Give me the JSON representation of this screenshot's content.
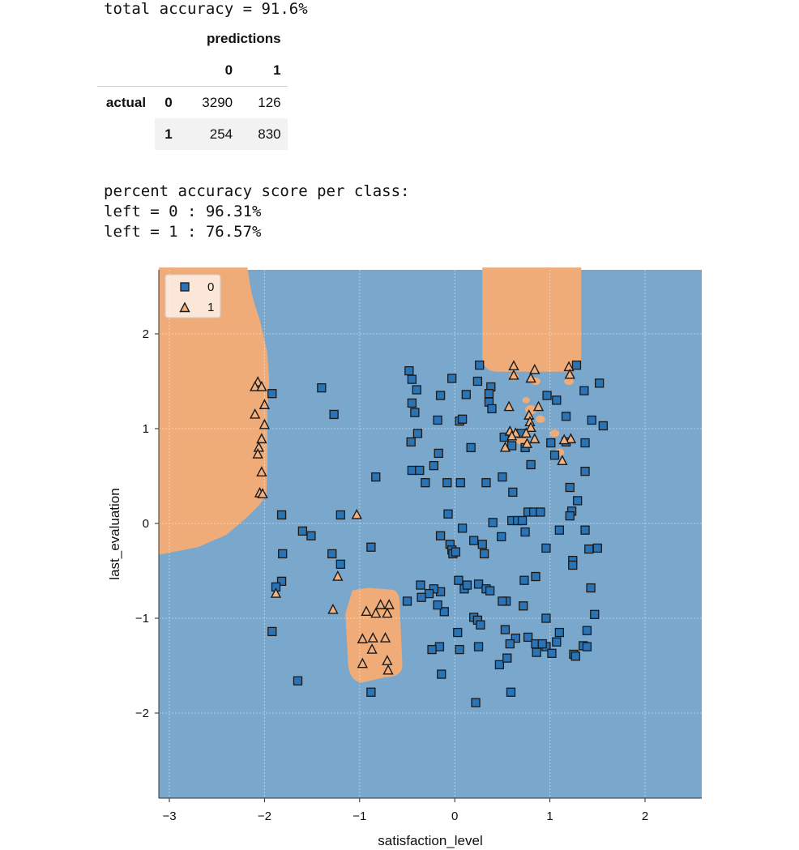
{
  "output": {
    "accuracy_line": "total accuracy = 91.6%",
    "confusion_matrix": {
      "col_group": "predictions",
      "col_labels": [
        "0",
        "1"
      ],
      "row_group": "actual",
      "row_labels": [
        "0",
        "1"
      ],
      "values": [
        [
          3290,
          126
        ],
        [
          254,
          830
        ]
      ]
    },
    "per_class_header": "percent accuracy score per class:",
    "per_class_lines": [
      "left = 0 : 96.31%",
      "left = 1 : 76.57%"
    ]
  },
  "chart_data": {
    "type": "scatter",
    "xlabel": "satisfaction_level",
    "ylabel": "last_evaluation",
    "xlim": [
      -3.15,
      2.55
    ],
    "ylim": [
      -2.9,
      2.7
    ],
    "xticks": [
      -3,
      -2,
      -1,
      0,
      1,
      2
    ],
    "yticks": [
      -2,
      -1,
      0,
      1,
      2
    ],
    "grid": true,
    "legend_position": "top-left",
    "colors": {
      "class0_region": "#7aa7cc",
      "class1_region": "#f0ac78",
      "class0_marker": "#2a73b4",
      "class1_marker": "#f3b17f"
    },
    "series": [
      {
        "name": "0",
        "marker": "square",
        "points": [
          [
            -1.92,
            1.37
          ],
          [
            -1.4,
            1.43
          ],
          [
            -1.27,
            1.15
          ],
          [
            -1.82,
            0.09
          ],
          [
            -1.2,
            0.09
          ],
          [
            -0.83,
            0.49
          ],
          [
            -1.6,
            -0.08
          ],
          [
            -1.51,
            -0.13
          ],
          [
            -1.81,
            -0.32
          ],
          [
            -1.29,
            -0.32
          ],
          [
            -1.2,
            -0.43
          ],
          [
            -1.82,
            -0.61
          ],
          [
            -1.88,
            -0.67
          ],
          [
            -1.92,
            -1.14
          ],
          [
            -1.65,
            -1.66
          ],
          [
            -0.88,
            -1.78
          ],
          [
            -0.88,
            -0.25
          ],
          [
            -0.48,
            1.61
          ],
          [
            -0.45,
            1.52
          ],
          [
            -0.4,
            1.41
          ],
          [
            -0.45,
            1.27
          ],
          [
            -0.42,
            1.17
          ],
          [
            -0.39,
            0.95
          ],
          [
            -0.46,
            0.86
          ],
          [
            -0.45,
            0.56
          ],
          [
            -0.37,
            0.56
          ],
          [
            -0.31,
            0.43
          ],
          [
            -0.22,
            0.61
          ],
          [
            -0.17,
            0.74
          ],
          [
            -0.18,
            1.09
          ],
          [
            -0.15,
            1.35
          ],
          [
            -0.03,
            1.53
          ],
          [
            0.05,
            1.08
          ],
          [
            0.12,
            1.36
          ],
          [
            0.08,
            1.1
          ],
          [
            0.17,
            0.8
          ],
          [
            0.24,
            1.5
          ],
          [
            0.26,
            1.67
          ],
          [
            0.36,
            1.28
          ],
          [
            0.38,
            1.44
          ],
          [
            0.36,
            1.37
          ],
          [
            0.39,
            1.21
          ],
          [
            -0.08,
            0.43
          ],
          [
            0.06,
            0.43
          ],
          [
            0.33,
            0.43
          ],
          [
            0.5,
            0.49
          ],
          [
            0.52,
            0.91
          ],
          [
            0.6,
            0.82
          ],
          [
            0.7,
            0.95
          ],
          [
            0.74,
            0.8
          ],
          [
            0.8,
            0.62
          ],
          [
            0.97,
            1.35
          ],
          [
            1.07,
            1.3
          ],
          [
            1.01,
            0.85
          ],
          [
            1.05,
            0.72
          ],
          [
            1.28,
            1.67
          ],
          [
            1.36,
            1.4
          ],
          [
            1.44,
            1.09
          ],
          [
            1.52,
            1.48
          ],
          [
            1.56,
            1.03
          ],
          [
            1.17,
            1.13
          ],
          [
            1.17,
            0.86
          ],
          [
            1.37,
            0.85
          ],
          [
            1.37,
            0.55
          ],
          [
            -0.07,
            0.1
          ],
          [
            0.61,
            0.33
          ],
          [
            0.6,
            0.03
          ],
          [
            0.66,
            0.03
          ],
          [
            0.71,
            0.03
          ],
          [
            0.77,
            0.12
          ],
          [
            0.83,
            0.12
          ],
          [
            0.9,
            0.12
          ],
          [
            1.21,
            0.38
          ],
          [
            1.29,
            0.24
          ],
          [
            1.23,
            0.13
          ],
          [
            1.21,
            0.08
          ],
          [
            0.08,
            -0.05
          ],
          [
            -0.15,
            -0.13
          ],
          [
            0.2,
            -0.18
          ],
          [
            -0.05,
            -0.22
          ],
          [
            -0.03,
            -0.28
          ],
          [
            -0.02,
            -0.32
          ],
          [
            0.01,
            -0.3
          ],
          [
            0.29,
            -0.22
          ],
          [
            0.31,
            -0.32
          ],
          [
            0.49,
            -0.14
          ],
          [
            0.4,
            0.01
          ],
          [
            0.74,
            -0.09
          ],
          [
            0.96,
            -0.26
          ],
          [
            1.1,
            -0.07
          ],
          [
            1.37,
            -0.07
          ],
          [
            1.41,
            -0.27
          ],
          [
            1.5,
            -0.26
          ],
          [
            1.24,
            -0.39
          ],
          [
            1.24,
            -0.44
          ],
          [
            -0.36,
            -0.65
          ],
          [
            -0.15,
            -0.72
          ],
          [
            -0.22,
            -0.69
          ],
          [
            -0.27,
            -0.74
          ],
          [
            -0.35,
            -0.78
          ],
          [
            -0.5,
            -0.82
          ],
          [
            -0.11,
            -0.93
          ],
          [
            -0.18,
            -0.86
          ],
          [
            0.04,
            -0.6
          ],
          [
            0.1,
            -0.69
          ],
          [
            0.13,
            -0.65
          ],
          [
            0.25,
            -0.64
          ],
          [
            0.33,
            -0.69
          ],
          [
            0.54,
            -0.82
          ],
          [
            0.73,
            -0.6
          ],
          [
            0.85,
            -0.56
          ],
          [
            0.2,
            -0.99
          ],
          [
            0.24,
            -1.02
          ],
          [
            0.27,
            -1.07
          ],
          [
            0.37,
            -0.71
          ],
          [
            0.5,
            -0.82
          ],
          [
            0.72,
            -0.87
          ],
          [
            1.43,
            -0.68
          ],
          [
            0.96,
            -1.0
          ],
          [
            1.1,
            -1.15
          ],
          [
            1.39,
            -1.13
          ],
          [
            1.47,
            -0.96
          ],
          [
            0.53,
            -1.12
          ],
          [
            0.64,
            -1.21
          ],
          [
            0.58,
            -1.27
          ],
          [
            0.77,
            -1.2
          ],
          [
            0.86,
            -1.36
          ],
          [
            0.85,
            -1.27
          ],
          [
            0.96,
            -1.3
          ],
          [
            0.92,
            -1.27
          ],
          [
            1.02,
            -1.37
          ],
          [
            0.25,
            -1.3
          ],
          [
            0.05,
            -1.33
          ],
          [
            0.03,
            -1.15
          ],
          [
            -0.16,
            -1.3
          ],
          [
            -0.24,
            -1.33
          ],
          [
            -0.14,
            -1.59
          ],
          [
            0.47,
            -1.49
          ],
          [
            0.55,
            -1.42
          ],
          [
            0.59,
            -1.78
          ],
          [
            0.22,
            -1.89
          ],
          [
            1.25,
            -1.38
          ],
          [
            1.27,
            -1.4
          ],
          [
            1.35,
            -1.29
          ],
          [
            1.39,
            -1.3
          ],
          [
            1.07,
            -1.25
          ]
        ]
      },
      {
        "name": "1",
        "marker": "triangle",
        "points": [
          [
            -2.07,
            1.49
          ],
          [
            -2.1,
            1.44
          ],
          [
            -2.03,
            1.44
          ],
          [
            -2.0,
            1.25
          ],
          [
            -2.1,
            1.15
          ],
          [
            -2.0,
            1.04
          ],
          [
            -2.03,
            0.89
          ],
          [
            -2.06,
            0.8
          ],
          [
            -2.07,
            0.73
          ],
          [
            -2.03,
            0.54
          ],
          [
            -2.05,
            0.32
          ],
          [
            -2.02,
            0.31
          ],
          [
            -1.03,
            0.09
          ],
          [
            -1.23,
            -0.56
          ],
          [
            -1.88,
            -0.74
          ],
          [
            -1.28,
            -0.91
          ],
          [
            -0.93,
            -0.93
          ],
          [
            -0.78,
            -0.86
          ],
          [
            -0.69,
            -0.86
          ],
          [
            -0.83,
            -0.95
          ],
          [
            -0.71,
            -0.95
          ],
          [
            -0.97,
            -1.22
          ],
          [
            -0.86,
            -1.21
          ],
          [
            -0.73,
            -1.21
          ],
          [
            -0.87,
            -1.33
          ],
          [
            -0.71,
            -1.45
          ],
          [
            -0.97,
            -1.48
          ],
          [
            -0.7,
            -1.55
          ],
          [
            0.62,
            1.66
          ],
          [
            0.84,
            1.62
          ],
          [
            0.62,
            1.56
          ],
          [
            0.8,
            1.53
          ],
          [
            1.2,
            1.65
          ],
          [
            1.21,
            1.57
          ],
          [
            0.57,
            1.23
          ],
          [
            0.88,
            1.23
          ],
          [
            0.78,
            1.14
          ],
          [
            0.79,
            1.07
          ],
          [
            0.8,
            1.01
          ],
          [
            0.58,
            0.97
          ],
          [
            0.64,
            0.95
          ],
          [
            0.75,
            0.95
          ],
          [
            0.6,
            0.92
          ],
          [
            0.84,
            0.89
          ],
          [
            0.76,
            0.84
          ],
          [
            0.53,
            0.8
          ],
          [
            1.22,
            0.89
          ],
          [
            1.15,
            0.88
          ],
          [
            1.13,
            0.66
          ]
        ]
      }
    ]
  }
}
